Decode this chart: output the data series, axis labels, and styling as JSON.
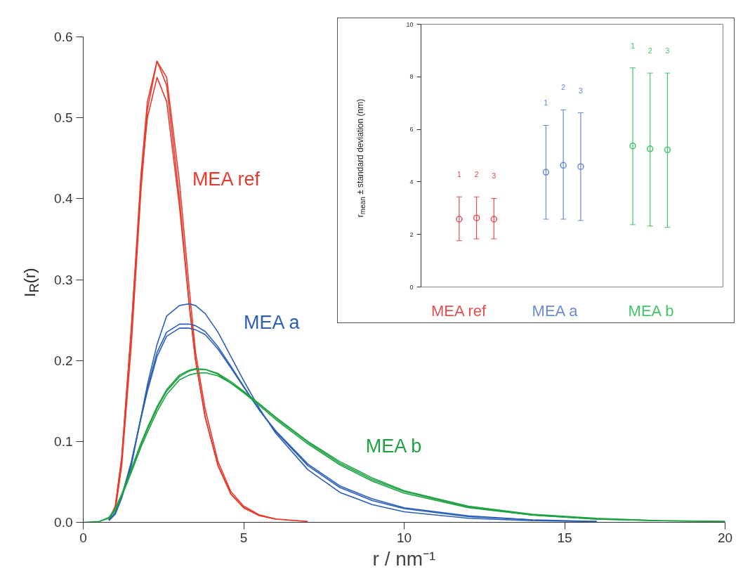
{
  "chart_data": [
    {
      "type": "line",
      "xlabel": "r / nm⁻¹",
      "ylabel": "I$_{R}$(r)",
      "xlim": [
        0,
        20
      ],
      "ylim": [
        0,
        0.6
      ],
      "xticks": [
        0,
        5,
        10,
        15,
        20
      ],
      "yticks": [
        {
          "value": 0,
          "label": "0.0"
        },
        {
          "value": 0.1,
          "label": "0.1"
        },
        {
          "value": 0.2,
          "label": "0.2"
        },
        {
          "value": 0.3,
          "label": "0.3"
        },
        {
          "value": 0.4,
          "label": "0.4"
        },
        {
          "value": 0.5,
          "label": "0.5"
        },
        {
          "value": 0.6,
          "label": "0.6"
        }
      ],
      "grid": false,
      "series": [
        {
          "name": "MEA ref",
          "color": "#e8392a",
          "x": [
            0.8,
            1.0,
            1.2,
            1.5,
            1.8,
            2.0,
            2.3,
            2.6,
            3.0,
            3.3,
            3.5,
            3.8,
            4.2,
            4.6,
            5,
            5.5,
            6,
            7
          ],
          "values": [
            0.003,
            0.02,
            0.08,
            0.24,
            0.43,
            0.52,
            0.57,
            0.54,
            0.4,
            0.27,
            0.2,
            0.13,
            0.07,
            0.035,
            0.018,
            0.008,
            0.004,
            0.001
          ]
        },
        {
          "color": "#e8392a",
          "x": [
            1.0,
            1.2,
            1.5,
            1.8,
            2.0,
            2.3,
            2.6,
            3.0,
            3.3,
            3.5,
            3.8,
            4.2,
            4.6,
            5,
            5.5,
            6
          ],
          "values": [
            0.015,
            0.07,
            0.22,
            0.41,
            0.51,
            0.57,
            0.55,
            0.42,
            0.29,
            0.21,
            0.14,
            0.075,
            0.038,
            0.02,
            0.009,
            0.004
          ]
        },
        {
          "color": "#e8392a",
          "x": [
            0.8,
            1.0,
            1.2,
            1.5,
            1.8,
            2.0,
            2.3,
            2.6,
            3.0,
            3.3,
            3.5,
            3.8,
            4.2,
            4.6,
            5,
            5.5
          ],
          "values": [
            0.003,
            0.02,
            0.08,
            0.24,
            0.42,
            0.5,
            0.55,
            0.52,
            0.39,
            0.27,
            0.2,
            0.13,
            0.07,
            0.035,
            0.018,
            0.008
          ]
        },
        {
          "name": "MEA a",
          "color": "#2a5fb8",
          "x": [
            0.8,
            1.0,
            1.2,
            1.5,
            1.8,
            2.0,
            2.3,
            2.6,
            3.0,
            3.3,
            3.5,
            3.8,
            4.2,
            4.6,
            5,
            5.5,
            6,
            7,
            8,
            9,
            10,
            12,
            14,
            16
          ],
          "values": [
            0.002,
            0.01,
            0.03,
            0.07,
            0.13,
            0.17,
            0.22,
            0.255,
            0.268,
            0.27,
            0.268,
            0.258,
            0.235,
            0.205,
            0.175,
            0.14,
            0.11,
            0.065,
            0.037,
            0.022,
            0.013,
            0.005,
            0.002,
            0.001
          ]
        },
        {
          "color": "#2a5fb8",
          "x": [
            0.8,
            1.0,
            1.2,
            1.5,
            1.8,
            2.0,
            2.3,
            2.6,
            3.0,
            3.3,
            3.5,
            3.8,
            4.2,
            4.6,
            5,
            5.5,
            6,
            7,
            8,
            9,
            10,
            12,
            14
          ],
          "values": [
            0.003,
            0.012,
            0.032,
            0.075,
            0.13,
            0.165,
            0.21,
            0.235,
            0.245,
            0.245,
            0.243,
            0.236,
            0.217,
            0.193,
            0.168,
            0.138,
            0.112,
            0.07,
            0.043,
            0.027,
            0.017,
            0.007,
            0.003
          ]
        },
        {
          "color": "#2a5fb8",
          "x": [
            1.0,
            1.2,
            1.5,
            1.8,
            2.0,
            2.3,
            2.6,
            3.0,
            3.3,
            3.5,
            3.8,
            4.2,
            4.6,
            5,
            5.5,
            6,
            7,
            8,
            9,
            10,
            12,
            14,
            16
          ],
          "values": [
            0.012,
            0.032,
            0.074,
            0.128,
            0.162,
            0.205,
            0.23,
            0.24,
            0.24,
            0.238,
            0.232,
            0.214,
            0.191,
            0.167,
            0.138,
            0.113,
            0.072,
            0.045,
            0.029,
            0.018,
            0.008,
            0.003,
            0.001
          ]
        },
        {
          "name": "MEA b",
          "color": "#1fa243",
          "x": [
            0,
            0.5,
            0.8,
            1.0,
            1.2,
            1.5,
            1.8,
            2.0,
            2.3,
            2.6,
            3.0,
            3.3,
            3.5,
            3.8,
            4.2,
            4.6,
            5,
            5.5,
            6,
            7,
            8,
            9,
            10,
            12,
            14,
            16,
            18,
            20
          ],
          "values": [
            0,
            0.001,
            0.006,
            0.017,
            0.035,
            0.066,
            0.098,
            0.117,
            0.143,
            0.164,
            0.182,
            0.188,
            0.19,
            0.189,
            0.183,
            0.172,
            0.16,
            0.144,
            0.127,
            0.097,
            0.071,
            0.051,
            0.036,
            0.018,
            0.009,
            0.004,
            0.002,
            0.001
          ]
        },
        {
          "color": "#1fa243",
          "x": [
            0.5,
            0.8,
            1.0,
            1.2,
            1.5,
            1.8,
            2.0,
            2.3,
            2.6,
            3.0,
            3.3,
            3.5,
            3.8,
            4.2,
            4.6,
            5,
            5.5,
            6,
            7,
            8,
            9,
            10,
            12,
            14,
            16,
            18,
            20
          ],
          "values": [
            0.001,
            0.005,
            0.015,
            0.033,
            0.064,
            0.096,
            0.115,
            0.141,
            0.162,
            0.18,
            0.187,
            0.189,
            0.189,
            0.184,
            0.174,
            0.162,
            0.146,
            0.129,
            0.099,
            0.073,
            0.053,
            0.038,
            0.019,
            0.009,
            0.004,
            0.002,
            0.001
          ]
        },
        {
          "color": "#1fa243",
          "x": [
            0.8,
            1.0,
            1.2,
            1.5,
            1.8,
            2.0,
            2.3,
            2.6,
            3.0,
            3.3,
            3.5,
            3.8,
            4.2,
            4.6,
            5,
            5.5,
            6,
            7,
            8,
            9,
            10,
            12,
            14,
            16,
            18
          ],
          "values": [
            0.005,
            0.015,
            0.032,
            0.062,
            0.093,
            0.111,
            0.137,
            0.158,
            0.176,
            0.182,
            0.184,
            0.185,
            0.181,
            0.172,
            0.161,
            0.146,
            0.13,
            0.1,
            0.075,
            0.055,
            0.039,
            0.02,
            0.01,
            0.005,
            0.002
          ]
        }
      ]
    },
    {
      "type": "scatter",
      "ylabel": "r$_{mean}$ ± standard deviation (nm)",
      "marker": "circle",
      "categories": [
        "1",
        "2",
        "3",
        null,
        null,
        "1",
        "2",
        "3",
        null,
        null,
        "1",
        "2",
        "3"
      ],
      "ylim": [
        0,
        10
      ],
      "yticks": [
        0,
        2,
        4,
        6,
        8,
        10
      ],
      "grid": false,
      "tick_labels": "y",
      "series": [
        {
          "name": "MEA ref",
          "color": "#e05050",
          "values": [
            2.58,
            2.63,
            2.58,
            null,
            null,
            null,
            null,
            null,
            null,
            null,
            null,
            null,
            null
          ],
          "errors": [
            [
              1.76,
              3.43
            ],
            [
              1.83,
              3.43
            ],
            [
              1.83,
              3.37
            ],
            null,
            null,
            null,
            null,
            null,
            null,
            null,
            null,
            null,
            null
          ]
        },
        {
          "name": "MEA a",
          "color": "#6a8ad4",
          "values": [
            null,
            null,
            null,
            null,
            null,
            4.37,
            4.63,
            4.58,
            null,
            null,
            null,
            null,
            null
          ],
          "errors": [
            null,
            null,
            null,
            null,
            null,
            [
              2.58,
              6.15
            ],
            [
              2.58,
              6.74
            ],
            [
              2.53,
              6.63
            ],
            null,
            null,
            null,
            null,
            null
          ]
        },
        {
          "name": "MEA b",
          "color": "#45c46a",
          "values": [
            null,
            null,
            null,
            null,
            null,
            null,
            null,
            null,
            null,
            null,
            5.37,
            5.26,
            5.22
          ],
          "errors": [
            null,
            null,
            null,
            null,
            null,
            null,
            null,
            null,
            null,
            null,
            [
              2.37,
              8.34
            ],
            [
              2.32,
              8.14
            ],
            [
              2.27,
              8.14
            ]
          ]
        }
      ]
    }
  ]
}
